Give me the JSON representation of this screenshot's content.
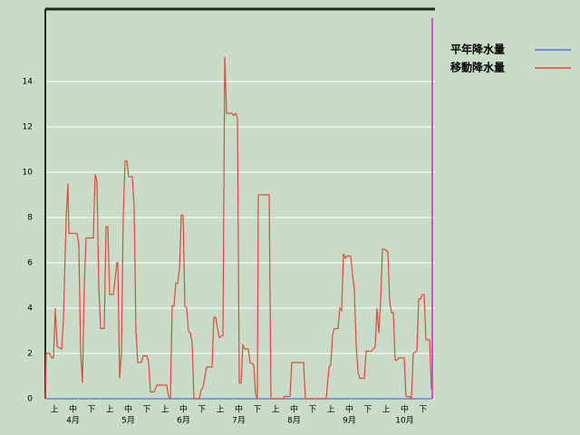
{
  "chart_data": {
    "type": "line",
    "categories": [
      "上",
      "中",
      "下",
      "上",
      "中",
      "下",
      "上",
      "中",
      "下",
      "上",
      "中",
      "下",
      "上",
      "中",
      "下",
      "上",
      "中",
      "下",
      "上",
      "中",
      "下"
    ],
    "month_labels": [
      "4月",
      "5月",
      "6月",
      "7月",
      "8月",
      "9月",
      "10月"
    ],
    "xlim": [
      0,
      213.5
    ],
    "ylim": [
      0,
      17.2
    ],
    "yticks": [
      0,
      2,
      4,
      6,
      8,
      10,
      12,
      14
    ],
    "grid": true,
    "legend": "right",
    "series": [
      {
        "name": "平年降水量",
        "color": "#5b6ee0",
        "x": [
          0,
          213.5
        ],
        "values": [
          0,
          0
        ]
      },
      {
        "name": "移動降水量",
        "color": "#e04a3a",
        "x": [
          0,
          0.5,
          2.5,
          3.5,
          4.5,
          5.5,
          6.5,
          9,
          10,
          11.5,
          12.5,
          13,
          17.5,
          18.5,
          19.5,
          20.5,
          21.5,
          22.5,
          26.5,
          27.5,
          28.5,
          29.5,
          30.5,
          32.5,
          33.5,
          34.5,
          35.5,
          37.5,
          39.5,
          40,
          41,
          42,
          43,
          44,
          45,
          46,
          48,
          49,
          50,
          51,
          53,
          54,
          56,
          57,
          58,
          60,
          61.5,
          67,
          68,
          69,
          70,
          71,
          72,
          73,
          74,
          75,
          76,
          77,
          78,
          79,
          80,
          81,
          82,
          85,
          86,
          87,
          89,
          92,
          93,
          94,
          95,
          96,
          98,
          99,
          100,
          103,
          104,
          105,
          106,
          107,
          108,
          109,
          110,
          112,
          113,
          115,
          116,
          117,
          117.5,
          123.5,
          124.5,
          131,
          132,
          135,
          136,
          142.5,
          143.5,
          155,
          156.5,
          157.5,
          158.5,
          159.5,
          161.5,
          162.5,
          163.5,
          164.5,
          165.5,
          166.5,
          168.5,
          169.5,
          170.5,
          171.5,
          172.5,
          173.5,
          176,
          177,
          180,
          182,
          183,
          184,
          185,
          186,
          187,
          189,
          190,
          191,
          192,
          193,
          194,
          195,
          198,
          199,
          201,
          202,
          203,
          205,
          206,
          207,
          208,
          209,
          210,
          212,
          213
        ],
        "values": [
          0,
          2.0,
          2.0,
          1.8,
          1.8,
          4.0,
          2.3,
          2.2,
          3.5,
          8,
          9.5,
          7.3,
          7.3,
          6.8,
          2,
          0.7,
          5,
          7.1,
          7.1,
          9.9,
          9.6,
          5,
          3.1,
          3.1,
          7.6,
          7.6,
          4.6,
          4.6,
          6.0,
          6.0,
          0.9,
          2,
          8,
          10.5,
          10.5,
          9.8,
          9.8,
          8.5,
          3,
          1.6,
          1.6,
          1.9,
          1.9,
          1.6,
          0.3,
          0.3,
          0.6,
          0.6,
          0.1,
          0,
          4.1,
          4.1,
          5.1,
          5.1,
          5.7,
          8.1,
          8.1,
          4.1,
          4,
          3,
          2.9,
          2.5,
          0,
          0,
          0.4,
          0.5,
          1.4,
          1.4,
          3.6,
          3.6,
          3.1,
          2.7,
          2.8,
          15.1,
          12.6,
          12.6,
          12.5,
          12.6,
          12.4,
          0.7,
          0.7,
          2.4,
          2.2,
          2.2,
          1.6,
          1.5,
          0.2,
          0,
          9.0,
          9.0,
          0,
          0,
          0.1,
          0.1,
          1.6,
          1.6,
          0,
          0,
          1.4,
          1.5,
          2.8,
          3.1,
          3.1,
          4.0,
          3.9,
          6.4,
          6.2,
          6.3,
          6.3,
          5.5,
          4.8,
          2.4,
          1.2,
          0.9,
          0.9,
          2.1,
          2.1,
          2.3,
          4.0,
          2.9,
          4.3,
          6.6,
          6.6,
          6.5,
          4.3,
          3.8,
          3.8,
          1.7,
          1.7,
          1.8,
          1.8,
          0.1,
          0.1,
          0,
          2.0,
          2.1,
          4.4,
          4.4,
          4.6,
          4.6,
          2.6,
          2.6,
          0.4
        ]
      }
    ]
  }
}
